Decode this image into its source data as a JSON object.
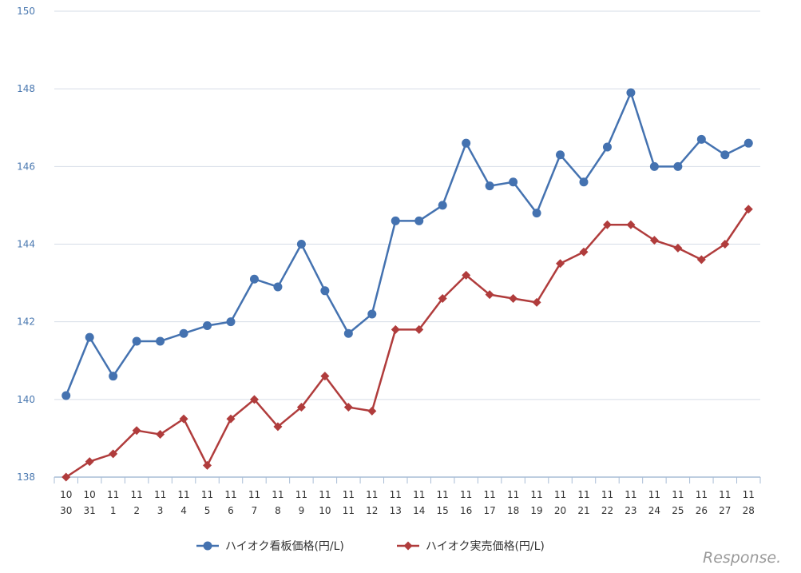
{
  "chart_data": {
    "type": "line",
    "categories": [
      [
        "10",
        "30"
      ],
      [
        "10",
        "31"
      ],
      [
        "11",
        "1"
      ],
      [
        "11",
        "2"
      ],
      [
        "11",
        "3"
      ],
      [
        "11",
        "4"
      ],
      [
        "11",
        "5"
      ],
      [
        "11",
        "6"
      ],
      [
        "11",
        "7"
      ],
      [
        "11",
        "8"
      ],
      [
        "11",
        "9"
      ],
      [
        "11",
        "10"
      ],
      [
        "11",
        "11"
      ],
      [
        "11",
        "12"
      ],
      [
        "11",
        "13"
      ],
      [
        "11",
        "14"
      ],
      [
        "11",
        "15"
      ],
      [
        "11",
        "16"
      ],
      [
        "11",
        "17"
      ],
      [
        "11",
        "18"
      ],
      [
        "11",
        "19"
      ],
      [
        "11",
        "20"
      ],
      [
        "11",
        "21"
      ],
      [
        "11",
        "22"
      ],
      [
        "11",
        "23"
      ],
      [
        "11",
        "24"
      ],
      [
        "11",
        "25"
      ],
      [
        "11",
        "26"
      ],
      [
        "11",
        "27"
      ],
      [
        "11",
        "28"
      ]
    ],
    "series": [
      {
        "name": "ハイオク看板価格(円/L)",
        "color": "#4472b0",
        "marker": "circle",
        "values": [
          140.1,
          141.6,
          140.6,
          141.5,
          141.5,
          141.7,
          141.9,
          142.0,
          143.1,
          142.9,
          144.0,
          142.8,
          141.7,
          142.2,
          144.6,
          144.6,
          145.0,
          146.6,
          145.5,
          145.6,
          144.8,
          146.3,
          145.6,
          146.5,
          147.9,
          146.0,
          146.0,
          146.7,
          146.3,
          146.6
        ]
      },
      {
        "name": "ハイオク実売価格(円/L)",
        "color": "#b03c3c",
        "marker": "diamond",
        "values": [
          138.0,
          138.4,
          138.6,
          139.2,
          139.1,
          139.5,
          138.3,
          139.5,
          140.0,
          139.3,
          139.8,
          140.6,
          139.8,
          139.7,
          141.8,
          141.8,
          142.6,
          143.2,
          142.7,
          142.6,
          142.5,
          143.5,
          143.8,
          144.5,
          144.5,
          144.1,
          143.9,
          143.6,
          144.0,
          144.9
        ]
      }
    ],
    "ylim": [
      138,
      150
    ],
    "yticks": [
      "138",
      "140",
      "142",
      "144",
      "146",
      "148",
      "150"
    ],
    "grid": true,
    "legend_position": "bottom"
  },
  "watermark": "Response."
}
